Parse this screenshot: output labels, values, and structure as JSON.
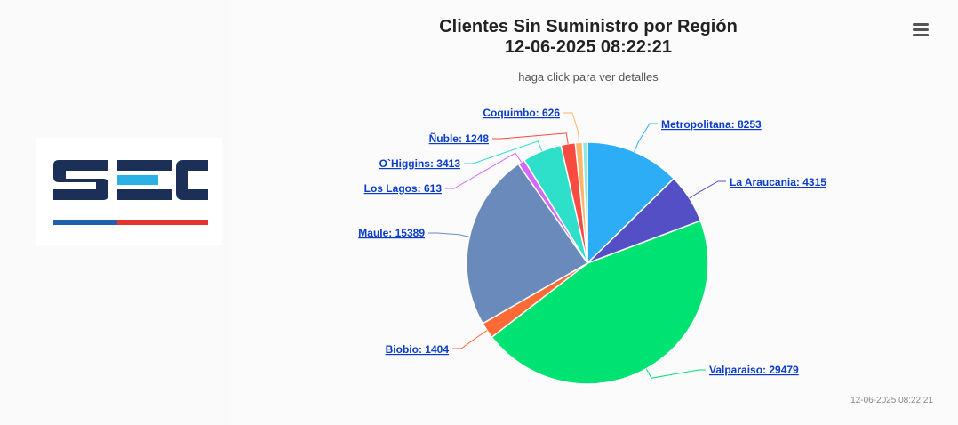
{
  "chart_data": {
    "type": "pie",
    "title_line1": "Clientes Sin Suministro por Región",
    "title_line2": "12-06-2025 08:22:21",
    "subtitle": "haga click para ver detalles",
    "credit": "12-06-2025 08:22:21",
    "slices": [
      {
        "name": "Metropolitana",
        "value": 8253,
        "label": "Metropolitana: 8253",
        "color": "#2cadf6"
      },
      {
        "name": "La Araucania",
        "value": 4315,
        "label": "La Araucania: 4315",
        "color": "#544fc5"
      },
      {
        "name": "Valparaiso",
        "value": 29479,
        "label": "Valparaiso: 29479",
        "color": "#00e272"
      },
      {
        "name": "Biobio",
        "value": 1404,
        "label": "Biobio: 1404",
        "color": "#fe6a35"
      },
      {
        "name": "Maule",
        "value": 15389,
        "label": "Maule: 15389",
        "color": "#6b8abc"
      },
      {
        "name": "Los Lagos",
        "value": 613,
        "label": "Los Lagos: 613",
        "color": "#d568fb"
      },
      {
        "name": "O`Higgins",
        "value": 3413,
        "label": "O`Higgins: 3413",
        "color": "#2ee0ca"
      },
      {
        "name": "Ñuble",
        "value": 1248,
        "label": "Ñuble: 1248",
        "color": "#fa4b42"
      },
      {
        "name": "Coquimbo",
        "value": 626,
        "label": "Coquimbo: 626",
        "color": "#feb56a"
      },
      {
        "name": "",
        "value": 420,
        "label": "",
        "color": "#91e8e1"
      }
    ]
  },
  "logo": {
    "text": "SEC",
    "colors": {
      "navy": "#1c2f57",
      "blue": "#2bb1e6",
      "stripe_blue": "#1f5fb0",
      "stripe_red": "#e2332f"
    }
  },
  "menu": {
    "icon": "hamburger-menu-icon"
  }
}
